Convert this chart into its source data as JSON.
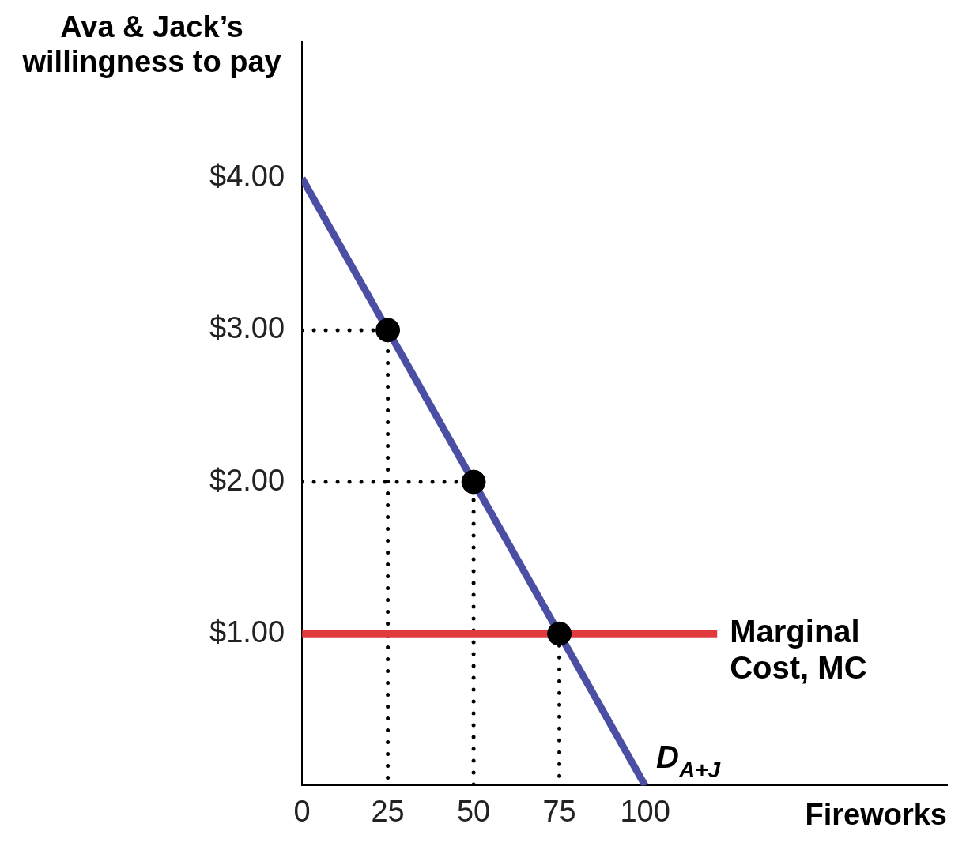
{
  "chart_data": {
    "type": "line",
    "ylabel": "Ava & Jack’s willingness to pay",
    "xlabel": "Fireworks",
    "xlim": [
      0,
      188
    ],
    "xticks": [
      0,
      25,
      50,
      75,
      100
    ],
    "ylim": [
      0,
      4.9
    ],
    "yticks": [
      {
        "value": 1,
        "label": "$1.00"
      },
      {
        "value": 2,
        "label": "$2.00"
      },
      {
        "value": 3,
        "label": "$3.00"
      },
      {
        "value": 4,
        "label": "$4.00"
      }
    ],
    "grid": false,
    "legend": false,
    "series": [
      {
        "name": "D$_{A+J}$",
        "type": "line",
        "color": "#4b4fa3",
        "x": [
          0,
          100
        ],
        "values": [
          4,
          0
        ]
      },
      {
        "name": "Marginal Cost, MC",
        "type": "line",
        "color": "#e03a3e",
        "x": [
          0,
          121
        ],
        "values": [
          1,
          1
        ]
      },
      {
        "type": "line",
        "line_style": "dotted",
        "color": "#000000",
        "x": [
          0,
          25,
          25
        ],
        "values": [
          3,
          3,
          0
        ]
      },
      {
        "type": "line",
        "line_style": "dotted",
        "color": "#000000",
        "x": [
          0,
          50,
          50
        ],
        "values": [
          2,
          2,
          0
        ]
      },
      {
        "type": "line",
        "line_style": "dotted",
        "color": "#000000",
        "x": [
          75,
          75
        ],
        "values": [
          1,
          0
        ]
      },
      {
        "type": "scatter",
        "marker": "circle",
        "color": "#000000",
        "x": [
          25,
          50,
          75
        ],
        "values": [
          3,
          2,
          1
        ]
      }
    ]
  }
}
